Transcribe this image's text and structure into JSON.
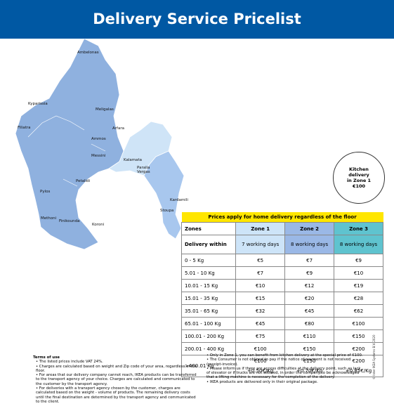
{
  "header": {
    "title": "Delivery Service Pricelist"
  },
  "map": {
    "places": [
      "Ambelonas",
      "Kyparissia",
      "Meligalas",
      "Filiatra",
      "Arfara",
      "Ammos",
      "Messini",
      "Kalamata",
      "Paralia Vergas",
      "Petalidi",
      "Pylos",
      "Kardamili",
      "Stoupa",
      "Methoni",
      "Finikounda",
      "Koroni"
    ]
  },
  "kitchen_note": [
    "Kitchen",
    "delivery",
    "in Zone 1",
    "€100"
  ],
  "table": {
    "banner": "Prices apply for home delivery regardless of the floor",
    "headers": [
      "Zones",
      "Zone 1",
      "Zone 2",
      "Zone 3"
    ],
    "rows": [
      [
        "Delivery within",
        "7 working days",
        "8 working days",
        "8 working days"
      ],
      [
        "0 - 5 Kg",
        "€5",
        "€7",
        "€9"
      ],
      [
        "5.01 - 10 Kg",
        "€7",
        "€9",
        "€10"
      ],
      [
        "10.01 - 15 Kg",
        "€10",
        "€12",
        "€19"
      ],
      [
        "15.01 - 35 Kg",
        "€15",
        "€20",
        "€28"
      ],
      [
        "35.01 - 65 Kg",
        "€32",
        "€45",
        "€62"
      ],
      [
        "65.01 - 100 Kg",
        "€45",
        "€80",
        "€100"
      ],
      [
        "100.01 - 200 Kg",
        "€75",
        "€110",
        "€150"
      ],
      [
        "200.01 - 400 Kg",
        "€100",
        "€150",
        "€200"
      ],
      [
        ">400.01 Kg",
        [
          "€100",
          "+0.50€/Kg"
        ],
        [
          "€150",
          "+0.70€/Kg"
        ],
        [
          "€200",
          "+0.85€/Kg"
        ]
      ]
    ]
  },
  "terms": {
    "title": "Terms of use",
    "left": [
      "• The listed prices include VAT 24%.",
      "• Charges are calculated based on weight and Zip code of your area, regardless of the floor.",
      "• For areas that our delivery company cannot reach, IKEA products can be transferred to the transport agency of your choice. Charges are calculated and communicated to the customer by the transport agency.",
      "• For deliveries with a transport agency chosen by the customer, charges are calculated based on the weight - volume of products. The remaining delivery costs until the final destination are determined by the transport agency and communicated to the client."
    ],
    "right": [
      "• Only in Zone 1, you can benefit from kitchen delivery at the special price of €100.",
      "• The Consumer is not obliged to pay if the notice of payment is not received (receipt-invoice).",
      "• Please inform us if there are access difficulties at the delivery point, such as lack of elevator or if trucks are not allowed, in order the company to be acknowledged that a lifting machine is necessary for the completion of the delivery.",
      "• IKEA products are delivered only in their original package."
    ]
  },
  "copyright": "© Inter IKEA Systems B.V. 2020"
}
